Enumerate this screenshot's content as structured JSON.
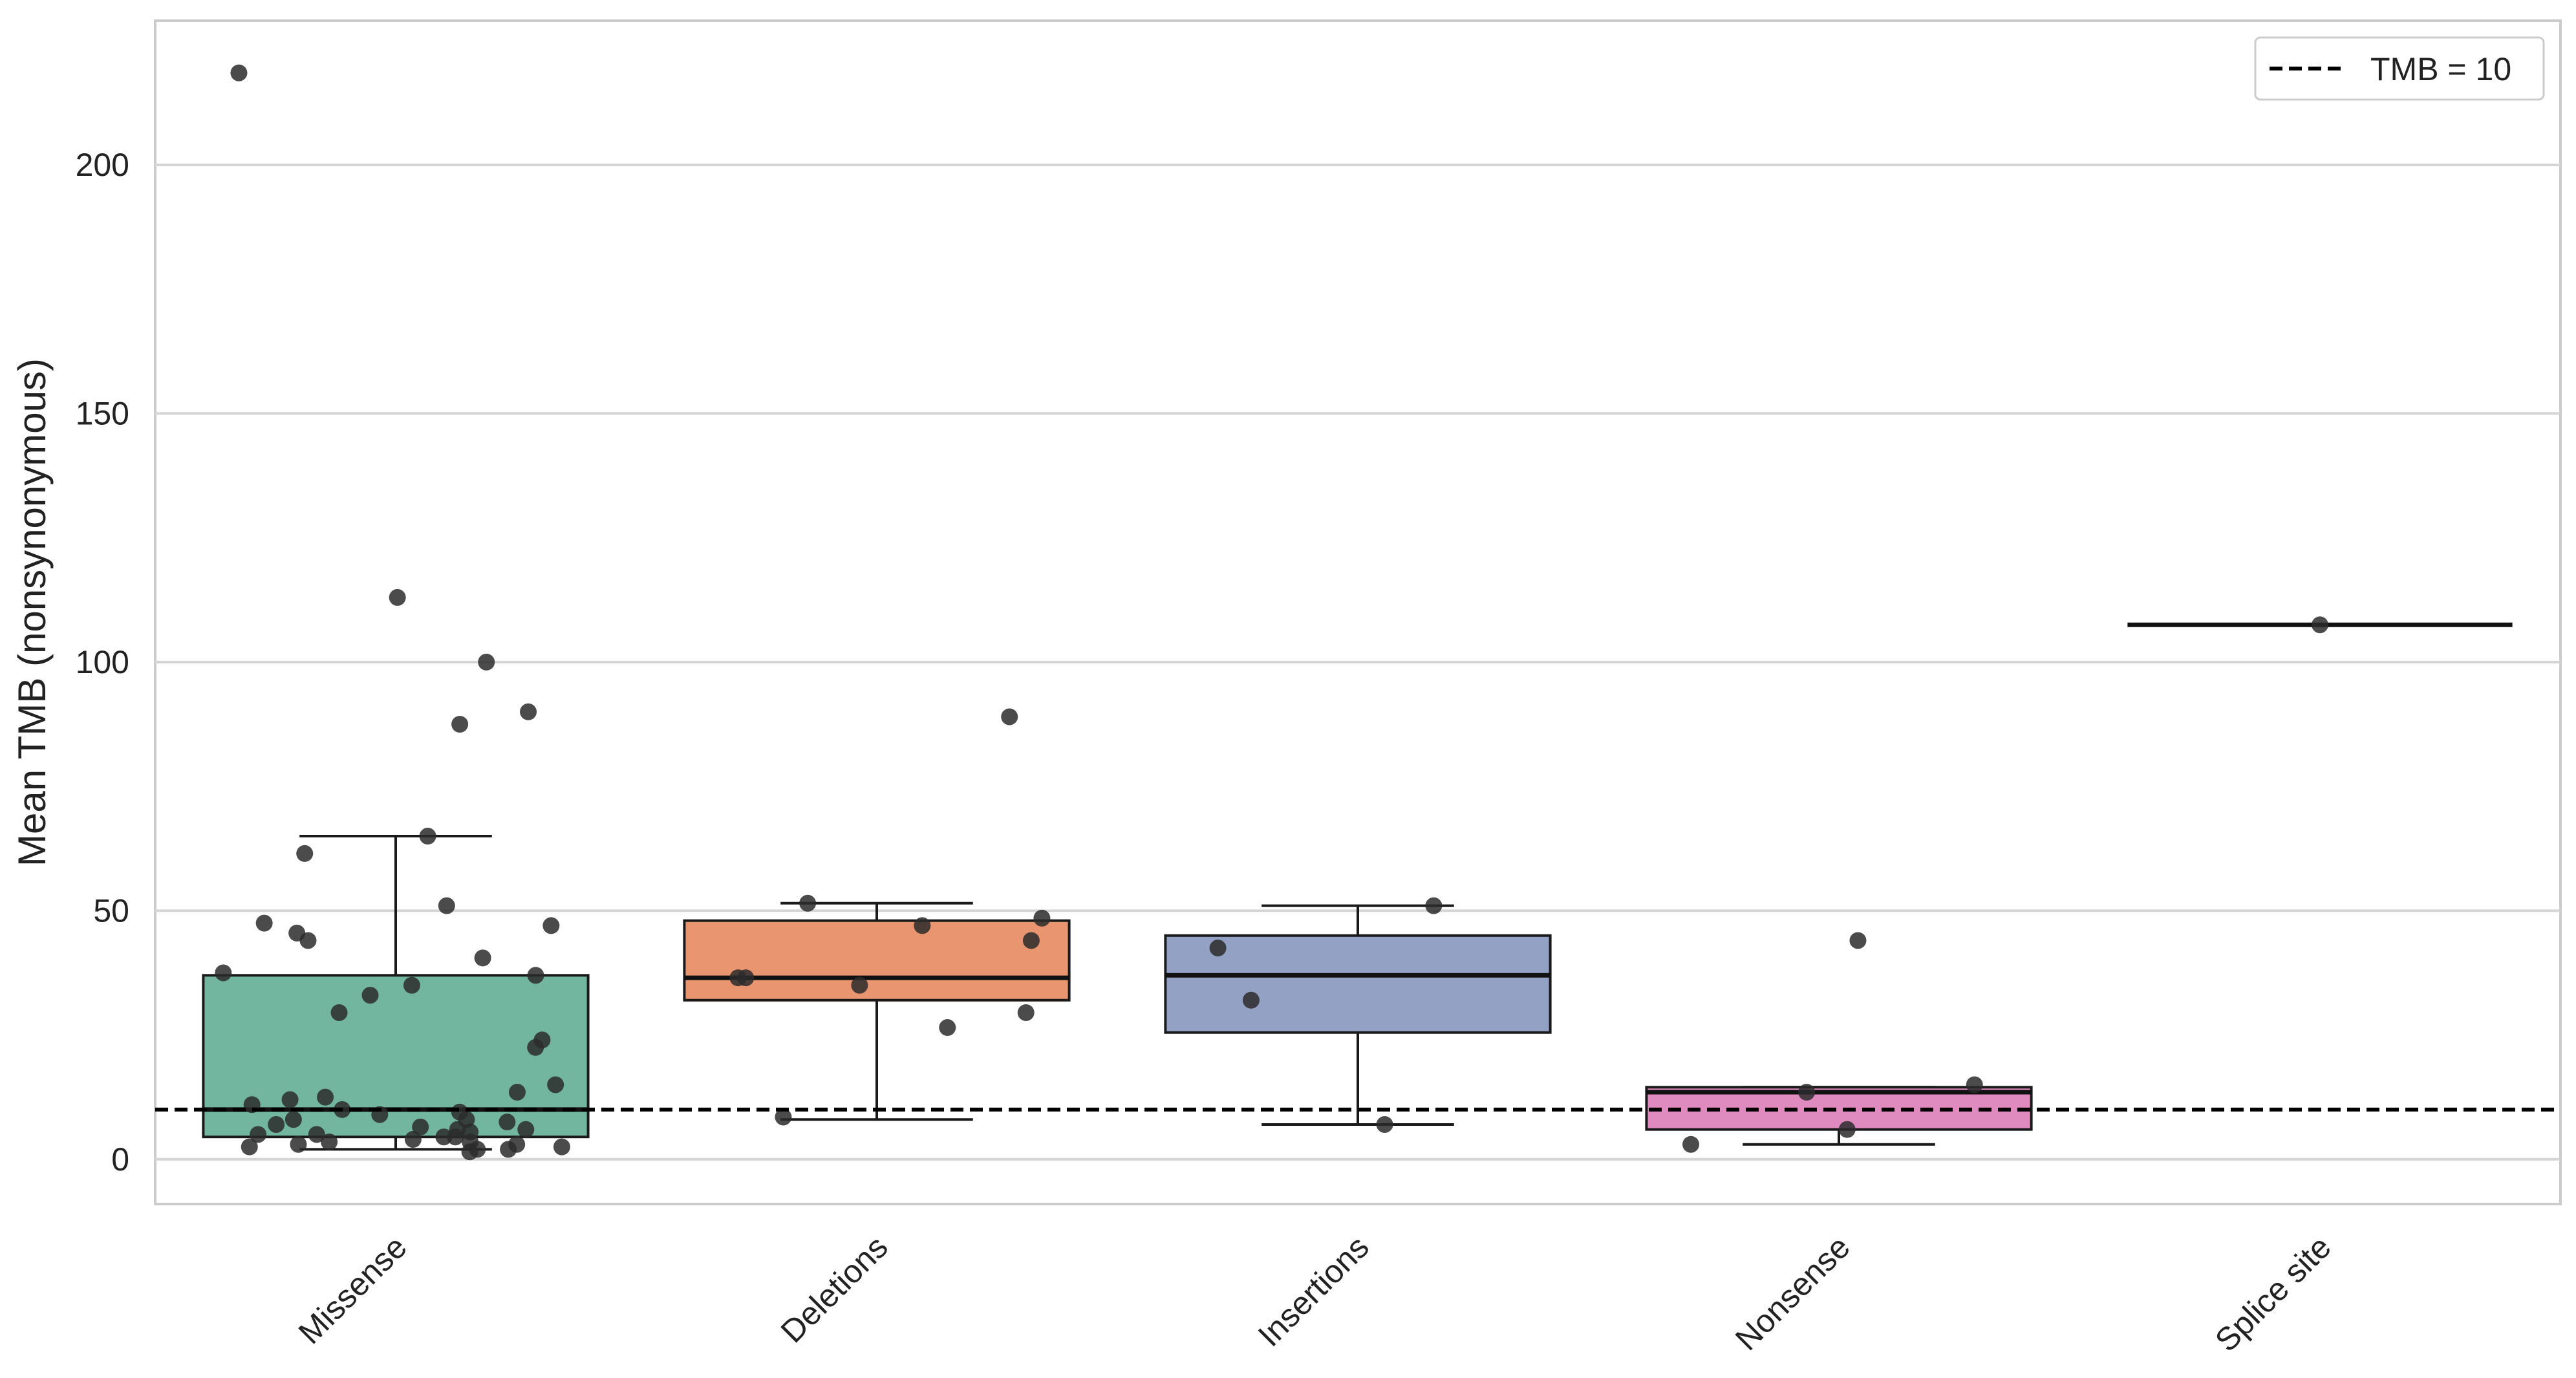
{
  "chart_data": {
    "type": "box",
    "title": "",
    "xlabel": "",
    "ylabel": "Mean TMB (nonsynonymous)",
    "ylim": [
      -9,
      229
    ],
    "yticks": [
      0,
      50,
      100,
      150,
      200
    ],
    "grid": "horizontal",
    "categories": [
      "Missense",
      "Deletions",
      "Insertions",
      "Nonsense",
      "Splice site"
    ],
    "colors": [
      "#73b6a0",
      "#e9956f",
      "#93a1c4",
      "#e08bbf",
      "#e2d85f"
    ],
    "boxes": [
      {
        "category": "Missense",
        "whisker_low": 2,
        "q1": 4.5,
        "median": 10,
        "q3": 37,
        "whisker_high": 65
      },
      {
        "category": "Deletions",
        "whisker_low": 8,
        "q1": 32,
        "median": 36.5,
        "q3": 48,
        "whisker_high": 51.5
      },
      {
        "category": "Insertions",
        "whisker_low": 7,
        "q1": 25.5,
        "median": 37,
        "q3": 45,
        "whisker_high": 51
      },
      {
        "category": "Nonsense",
        "whisker_low": 3,
        "q1": 6,
        "median": 13.5,
        "q3": 14.5,
        "whisker_high": 14.5
      },
      {
        "category": "Splice site",
        "whisker_low": 107.5,
        "q1": 107.5,
        "median": 107.5,
        "q3": 107.5,
        "whisker_high": 107.5
      }
    ],
    "points": [
      {
        "category": "Missense",
        "y": [
          218.5,
          113,
          100,
          87.5,
          90,
          65,
          61.5,
          51,
          47,
          47.5,
          45.5,
          44,
          40.5,
          37.5,
          37,
          35,
          33,
          29.5,
          24,
          22.5,
          15,
          12.5,
          13.5,
          12,
          11,
          9.5,
          9,
          8,
          7.5,
          7,
          6.5,
          6,
          5.5,
          5,
          4.5,
          4,
          3.5,
          3,
          2.5,
          2,
          2,
          1.5,
          3,
          4.5,
          6,
          8,
          10,
          2.5,
          3.5,
          5
        ]
      },
      {
        "category": "Deletions",
        "y": [
          89,
          51.5,
          48.5,
          47,
          44,
          36.5,
          36.5,
          35,
          29.5,
          26.5,
          8.5
        ]
      },
      {
        "category": "Insertions",
        "y": [
          51,
          42.5,
          32,
          7
        ]
      },
      {
        "category": "Nonsense",
        "y": [
          44,
          15,
          13.5,
          6,
          3
        ]
      },
      {
        "category": "Splice site",
        "y": [
          107.5
        ]
      }
    ],
    "reference_line": {
      "y": 10,
      "style": "dashed",
      "label": "TMB = 10"
    },
    "legend": {
      "position": "top-right",
      "entries": [
        "TMB = 10"
      ]
    }
  }
}
